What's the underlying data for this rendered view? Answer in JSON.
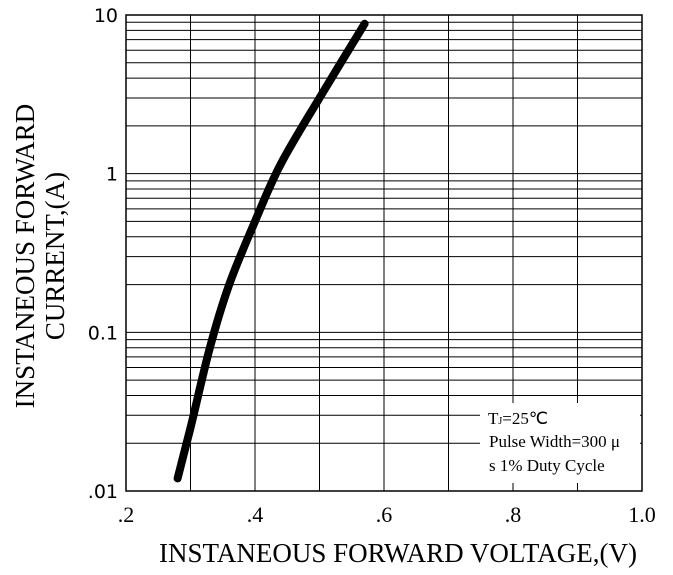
{
  "chart_data": {
    "type": "line",
    "xlabel": "INSTANEOUS FORWARD VOLTAGE,(V)",
    "ylabel_lines": [
      "INSTANEOUS FORWARD",
      "CURRENT,(A)"
    ],
    "xlim": [
      0.2,
      1.0
    ],
    "ylim": [
      0.01,
      10
    ],
    "y_scale": "log",
    "grid": true,
    "x_ticks": [
      {
        "value": 0.2,
        "label": ".2"
      },
      {
        "value": 0.4,
        "label": ".4"
      },
      {
        "value": 0.6,
        "label": ".6"
      },
      {
        "value": 0.8,
        "label": ".8"
      },
      {
        "value": 1.0,
        "label": "1.0"
      }
    ],
    "y_ticks": [
      {
        "value": 0.01,
        "label": ".01"
      },
      {
        "value": 0.1,
        "label": "0.1"
      },
      {
        "value": 1,
        "label": "1"
      },
      {
        "value": 10,
        "label": "10"
      }
    ],
    "series": [
      {
        "color": "#000000",
        "x": [
          0.28,
          0.3,
          0.33,
          0.36,
          0.4,
          0.44,
          0.5,
          0.57
        ],
        "y": [
          0.012,
          0.025,
          0.08,
          0.2,
          0.5,
          1.15,
          3.0,
          8.8
        ]
      }
    ],
    "annotation": {
      "line1_main": "T",
      "line1_sub": "J",
      "line1_rest": "=25℃",
      "line2": "Pulse Width=300 μ",
      "line3": "s 1% Duty Cycle"
    }
  }
}
